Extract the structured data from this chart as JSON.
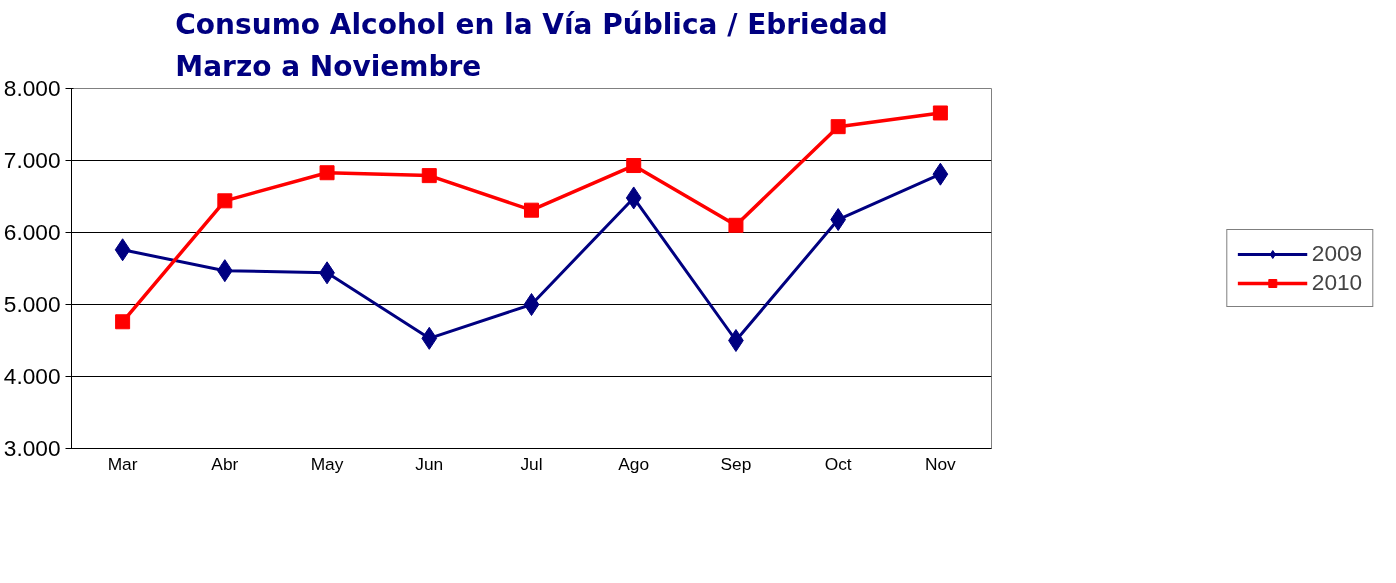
{
  "chart_data": {
    "type": "line",
    "title": "Consumo Alcohol en la Vía Pública / Ebriedad\nMarzo a Noviembre",
    "categories": [
      "Mar",
      "Abr",
      "May",
      "Jun",
      "Jul",
      "Ago",
      "Sep",
      "Oct",
      "Nov"
    ],
    "series": [
      {
        "name": "2009",
        "color": "#000080",
        "marker": "diamond",
        "values": [
          5760,
          5470,
          5440,
          4530,
          5000,
          6480,
          4500,
          6180,
          6810
        ]
      },
      {
        "name": "2010",
        "color": "#ff0000",
        "marker": "square",
        "values": [
          4760,
          6440,
          6830,
          6790,
          6310,
          6930,
          6100,
          7470,
          7660
        ]
      }
    ],
    "ylim": [
      3000,
      8000
    ],
    "yticks": [
      {
        "value": 3000,
        "label": "3.000"
      },
      {
        "value": 4000,
        "label": "4.000"
      },
      {
        "value": 5000,
        "label": "5.000"
      },
      {
        "value": 6000,
        "label": "6.000"
      },
      {
        "value": 7000,
        "label": "7.000"
      },
      {
        "value": 8000,
        "label": "8.000"
      }
    ],
    "grid": "y",
    "legend": "right",
    "line_style": "solid"
  }
}
